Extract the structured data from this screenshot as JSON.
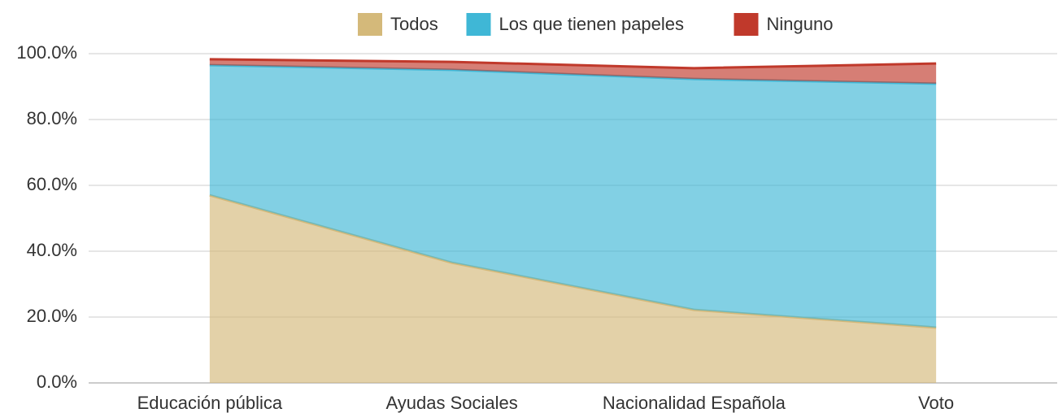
{
  "chart_data": {
    "type": "stacked_area",
    "categories": [
      "Educación pública",
      "Ayudas Sociales",
      "Nacionalidad Española",
      "Voto"
    ],
    "series": [
      {
        "name": "Todos",
        "color": "#d4b97a",
        "values": [
          57.0,
          36.5,
          22.2,
          16.8
        ]
      },
      {
        "name": "Los que tienen papeles",
        "color": "#3fb7d6",
        "values": [
          39.5,
          58.6,
          70.1,
          74.1
        ]
      },
      {
        "name": "Ninguno",
        "color": "#c0392b",
        "values": [
          1.8,
          2.4,
          3.3,
          6.1
        ]
      }
    ],
    "ylim": [
      0,
      100
    ],
    "yticks": [
      {
        "value": 0,
        "label": "0.0%"
      },
      {
        "value": 20,
        "label": "20.0%"
      },
      {
        "value": 40,
        "label": "40.0%"
      },
      {
        "value": 60,
        "label": "60.0%"
      },
      {
        "value": 80,
        "label": "80.0%"
      },
      {
        "value": 100,
        "label": "100.0%"
      }
    ],
    "grid": true,
    "legend": "top"
  }
}
